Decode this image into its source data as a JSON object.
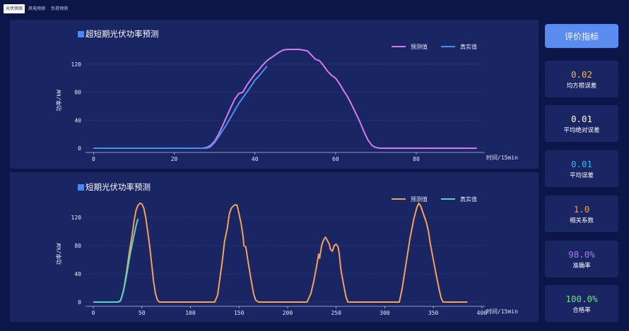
{
  "tabs": [
    {
      "label": "光伏预测",
      "active": true
    },
    {
      "label": "风电预测",
      "active": false
    },
    {
      "label": "负荷预测",
      "active": false
    }
  ],
  "side": {
    "button_label": "评价指标",
    "metrics": [
      {
        "value": "0.02",
        "label": "均方根误差",
        "color": "#f5b34a"
      },
      {
        "value": "0.01",
        "label": "平均绝对误差",
        "color": "#ffffff"
      },
      {
        "value": "0.01",
        "label": "平均误差",
        "color": "#3bb4f2"
      },
      {
        "value": "1.0",
        "label": "相关系数",
        "color": "#f5a04a"
      },
      {
        "value": "98.0%",
        "label": "准确率",
        "color": "#a57af0"
      },
      {
        "value": "100.0%",
        "label": "合格率",
        "color": "#5fe08a"
      }
    ]
  },
  "chart_data": [
    {
      "type": "line",
      "title": "超短期光伏功率预测",
      "ylabel": "功率/kW",
      "xlabel": "时间/15min",
      "xlim": [
        -2,
        97
      ],
      "ylim": [
        -6,
        142
      ],
      "xticks": [
        0,
        20,
        40,
        60,
        80
      ],
      "yticks": [
        0,
        40,
        80,
        120
      ],
      "legend": "top-right",
      "series": [
        {
          "name": "预测值",
          "color": "#d27cf0",
          "points": [
            [
              0,
              0
            ],
            [
              10,
              0
            ],
            [
              20,
              0
            ],
            [
              27,
              0
            ],
            [
              28,
              1
            ],
            [
              29,
              4
            ],
            [
              30,
              10
            ],
            [
              31,
              20
            ],
            [
              32,
              32
            ],
            [
              33,
              45
            ],
            [
              34,
              58
            ],
            [
              35,
              70
            ],
            [
              36,
              78
            ],
            [
              37,
              80
            ],
            [
              38,
              90
            ],
            [
              39,
              98
            ],
            [
              40,
              106
            ],
            [
              41,
              112
            ],
            [
              42,
              119
            ],
            [
              43,
              125
            ],
            [
              44,
              129
            ],
            [
              45,
              133
            ],
            [
              46,
              137
            ],
            [
              47,
              140
            ],
            [
              48,
              141
            ],
            [
              49,
              141
            ],
            [
              50,
              141
            ],
            [
              51,
              141
            ],
            [
              52,
              140
            ],
            [
              53,
              139
            ],
            [
              54,
              133
            ],
            [
              55,
              127
            ],
            [
              56,
              125
            ],
            [
              57,
              118
            ],
            [
              58,
              110
            ],
            [
              59,
              104
            ],
            [
              60,
              100
            ],
            [
              61,
              92
            ],
            [
              62,
              82
            ],
            [
              63,
              73
            ],
            [
              64,
              62
            ],
            [
              65,
              50
            ],
            [
              66,
              38
            ],
            [
              67,
              24
            ],
            [
              68,
              12
            ],
            [
              69,
              4
            ],
            [
              70,
              1
            ],
            [
              71,
              0
            ],
            [
              80,
              0
            ],
            [
              90,
              0
            ],
            [
              95,
              0
            ]
          ]
        },
        {
          "name": "真实值",
          "color": "#4a8ff0",
          "points": [
            [
              0,
              0
            ],
            [
              10,
              0
            ],
            [
              20,
              0
            ],
            [
              28,
              0
            ],
            [
              29,
              2
            ],
            [
              30,
              8
            ],
            [
              31,
              16
            ],
            [
              32,
              25
            ],
            [
              33,
              34
            ],
            [
              34,
              44
            ],
            [
              35,
              54
            ],
            [
              36,
              64
            ],
            [
              37,
              72
            ],
            [
              38,
              80
            ],
            [
              39,
              88
            ],
            [
              40,
              97
            ],
            [
              41,
              103
            ],
            [
              42,
              110
            ],
            [
              43,
              117
            ]
          ]
        }
      ]
    },
    {
      "type": "line",
      "title": "短期光伏功率预测",
      "ylabel": "功率/kW",
      "xlabel": "时间/15min",
      "xlim": [
        -8,
        403
      ],
      "ylim": [
        -6,
        142
      ],
      "xticks": [
        0,
        50,
        100,
        150,
        200,
        250,
        300,
        350,
        400
      ],
      "yticks": [
        0,
        40,
        80,
        120
      ],
      "legend": "top-right",
      "series": [
        {
          "name": "预测值",
          "color": "#f3a257",
          "points": [
            [
              0,
              0
            ],
            [
              25,
              0
            ],
            [
              28,
              2
            ],
            [
              31,
              15
            ],
            [
              34,
              40
            ],
            [
              37,
              70
            ],
            [
              40,
              95
            ],
            [
              42,
              115
            ],
            [
              44,
              130
            ],
            [
              46,
              137
            ],
            [
              48,
              140
            ],
            [
              50,
              139
            ],
            [
              52,
              133
            ],
            [
              54,
              120
            ],
            [
              56,
              100
            ],
            [
              58,
              80
            ],
            [
              60,
              55
            ],
            [
              62,
              30
            ],
            [
              64,
              12
            ],
            [
              66,
              3
            ],
            [
              68,
              0
            ],
            [
              125,
              0
            ],
            [
              128,
              10
            ],
            [
              130,
              30
            ],
            [
              133,
              60
            ],
            [
              135,
              85
            ],
            [
              138,
              105
            ],
            [
              140,
              125
            ],
            [
              142,
              133
            ],
            [
              144,
              136
            ],
            [
              146,
              138
            ],
            [
              148,
              137
            ],
            [
              150,
              125
            ],
            [
              152,
              112
            ],
            [
              154,
              95
            ],
            [
              155,
              80
            ],
            [
              157,
              78
            ],
            [
              159,
              60
            ],
            [
              162,
              35
            ],
            [
              165,
              12
            ],
            [
              167,
              3
            ],
            [
              170,
              0
            ],
            [
              220,
              0
            ],
            [
              224,
              12
            ],
            [
              227,
              30
            ],
            [
              230,
              52
            ],
            [
              232,
              68
            ],
            [
              233,
              62
            ],
            [
              235,
              80
            ],
            [
              237,
              88
            ],
            [
              239,
              92
            ],
            [
              241,
              87
            ],
            [
              243,
              82
            ],
            [
              244,
              75
            ],
            [
              246,
              72
            ],
            [
              248,
              80
            ],
            [
              250,
              82
            ],
            [
              252,
              78
            ],
            [
              253,
              70
            ],
            [
              255,
              45
            ],
            [
              258,
              22
            ],
            [
              260,
              8
            ],
            [
              262,
              0
            ],
            [
              315,
              0
            ],
            [
              318,
              20
            ],
            [
              322,
              55
            ],
            [
              326,
              90
            ],
            [
              330,
              118
            ],
            [
              333,
              134
            ],
            [
              335,
              140
            ],
            [
              337,
              136
            ],
            [
              339,
              128
            ],
            [
              341,
              120
            ],
            [
              343,
              112
            ],
            [
              345,
              100
            ],
            [
              347,
              82
            ],
            [
              350,
              60
            ],
            [
              353,
              38
            ],
            [
              356,
              18
            ],
            [
              358,
              6
            ],
            [
              360,
              0
            ],
            [
              385,
              0
            ]
          ]
        },
        {
          "name": "真实值",
          "color": "#5ed3c4",
          "points": [
            [
              0,
              0
            ],
            [
              10,
              0
            ],
            [
              20,
              0
            ],
            [
              26,
              0
            ],
            [
              28,
              2
            ],
            [
              30,
              10
            ],
            [
              32,
              22
            ],
            [
              34,
              36
            ],
            [
              36,
              52
            ],
            [
              38,
              68
            ],
            [
              40,
              82
            ],
            [
              42,
              95
            ],
            [
              44,
              108
            ],
            [
              46,
              118
            ]
          ]
        }
      ]
    }
  ]
}
